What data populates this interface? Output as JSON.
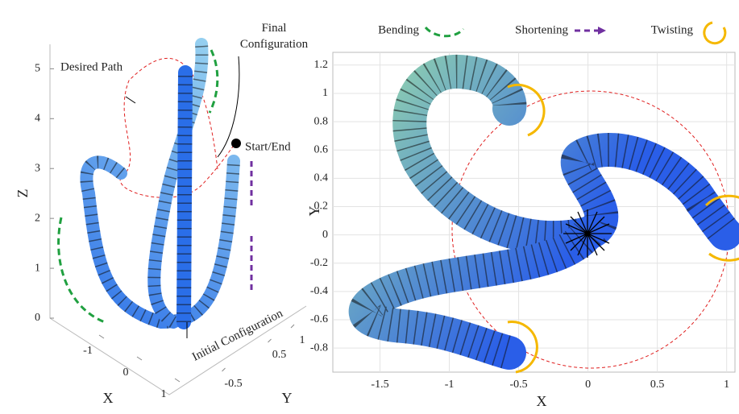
{
  "chart_data": [
    {
      "type": "3d",
      "xlabel": "X",
      "ylabel": "Y",
      "zlabel": "Z",
      "xlim": [
        -1.4,
        1.1
      ],
      "ylim": [
        -0.9,
        1.2
      ],
      "zlim": [
        0,
        5.2
      ],
      "xticks": [
        -1,
        0,
        1
      ],
      "yticks": [
        -0.5,
        0.5,
        1
      ],
      "zticks": [
        0,
        1,
        2,
        3,
        4,
        5
      ],
      "annotations": [
        "Desired Path",
        "Final Configuration",
        "Start/End",
        "Initial Configuration"
      ]
    },
    {
      "type": "2d",
      "xlabel": "X",
      "ylabel": "Y",
      "grid": true,
      "xlim": [
        -1.84,
        1.06
      ],
      "ylim": [
        -0.97,
        1.29
      ],
      "xticks": [
        -1.5,
        -1,
        -0.5,
        0,
        0.5,
        1
      ],
      "yticks": [
        -0.8,
        -0.6,
        -0.4,
        -0.2,
        0,
        0.2,
        0.4,
        0.6,
        0.8,
        1,
        1.2
      ],
      "legend": [
        "Bending",
        "Shortening",
        "Twisting"
      ]
    }
  ]
}
